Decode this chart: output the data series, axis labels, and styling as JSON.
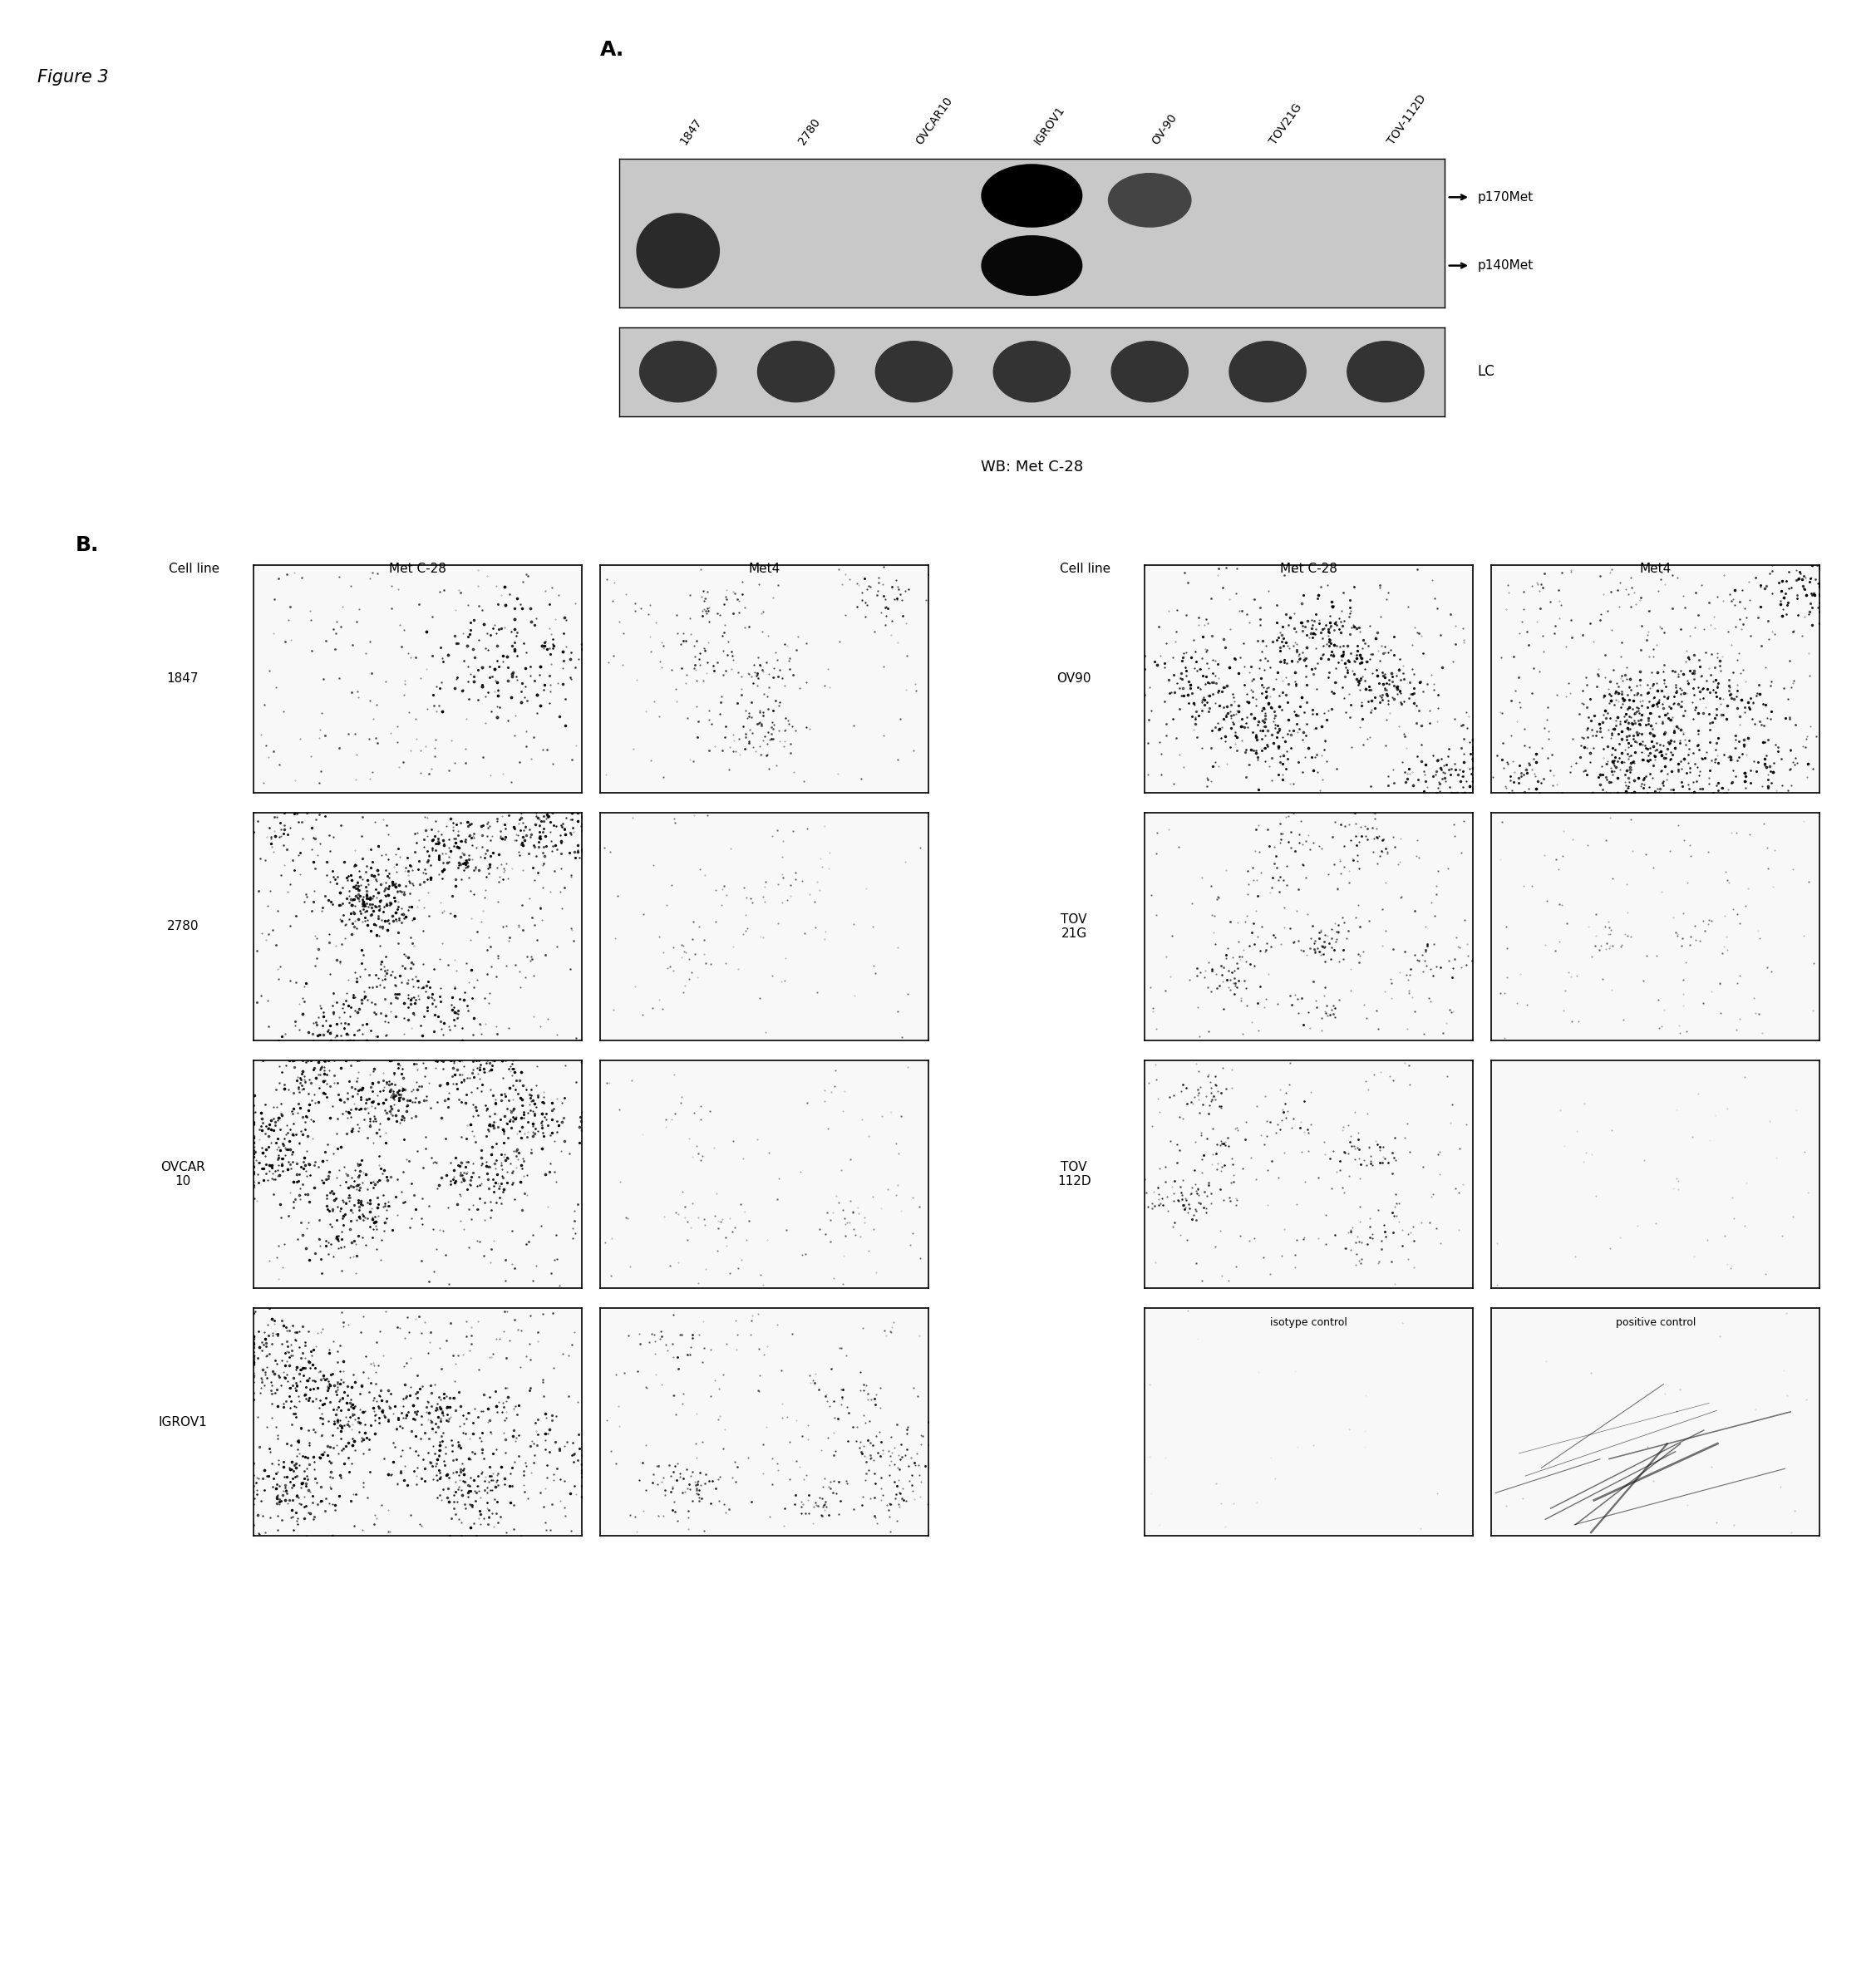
{
  "figure_label": "Figure 3",
  "panel_a_label": "A.",
  "panel_b_label": "B.",
  "wb_label": "WB: Met C-28",
  "lane_labels": [
    "1847",
    "2780",
    "OVCAR10",
    "IGROV1",
    "OV-90",
    "TOV21G",
    "TOV-112D"
  ],
  "band_labels_right": [
    "p170Met",
    "p140Met"
  ],
  "lc_label": "LC",
  "col_headers_left": [
    "Cell line",
    "Met C-28",
    "Met4"
  ],
  "col_headers_right": [
    "Cell line",
    "Met C-28",
    "Met4"
  ],
  "row_labels_left": [
    "1847",
    "2780",
    "OVCAR\n10",
    "IGROV1"
  ],
  "row_labels_right": [
    "OV90",
    "TOV\n21G",
    "TOV\n112D",
    ""
  ],
  "special_labels": [
    "isotype control",
    "positive control"
  ],
  "bg_color": "#ffffff",
  "gel_bg": "#c8c8c8",
  "lc_gel_bg": "#c8c8c8"
}
